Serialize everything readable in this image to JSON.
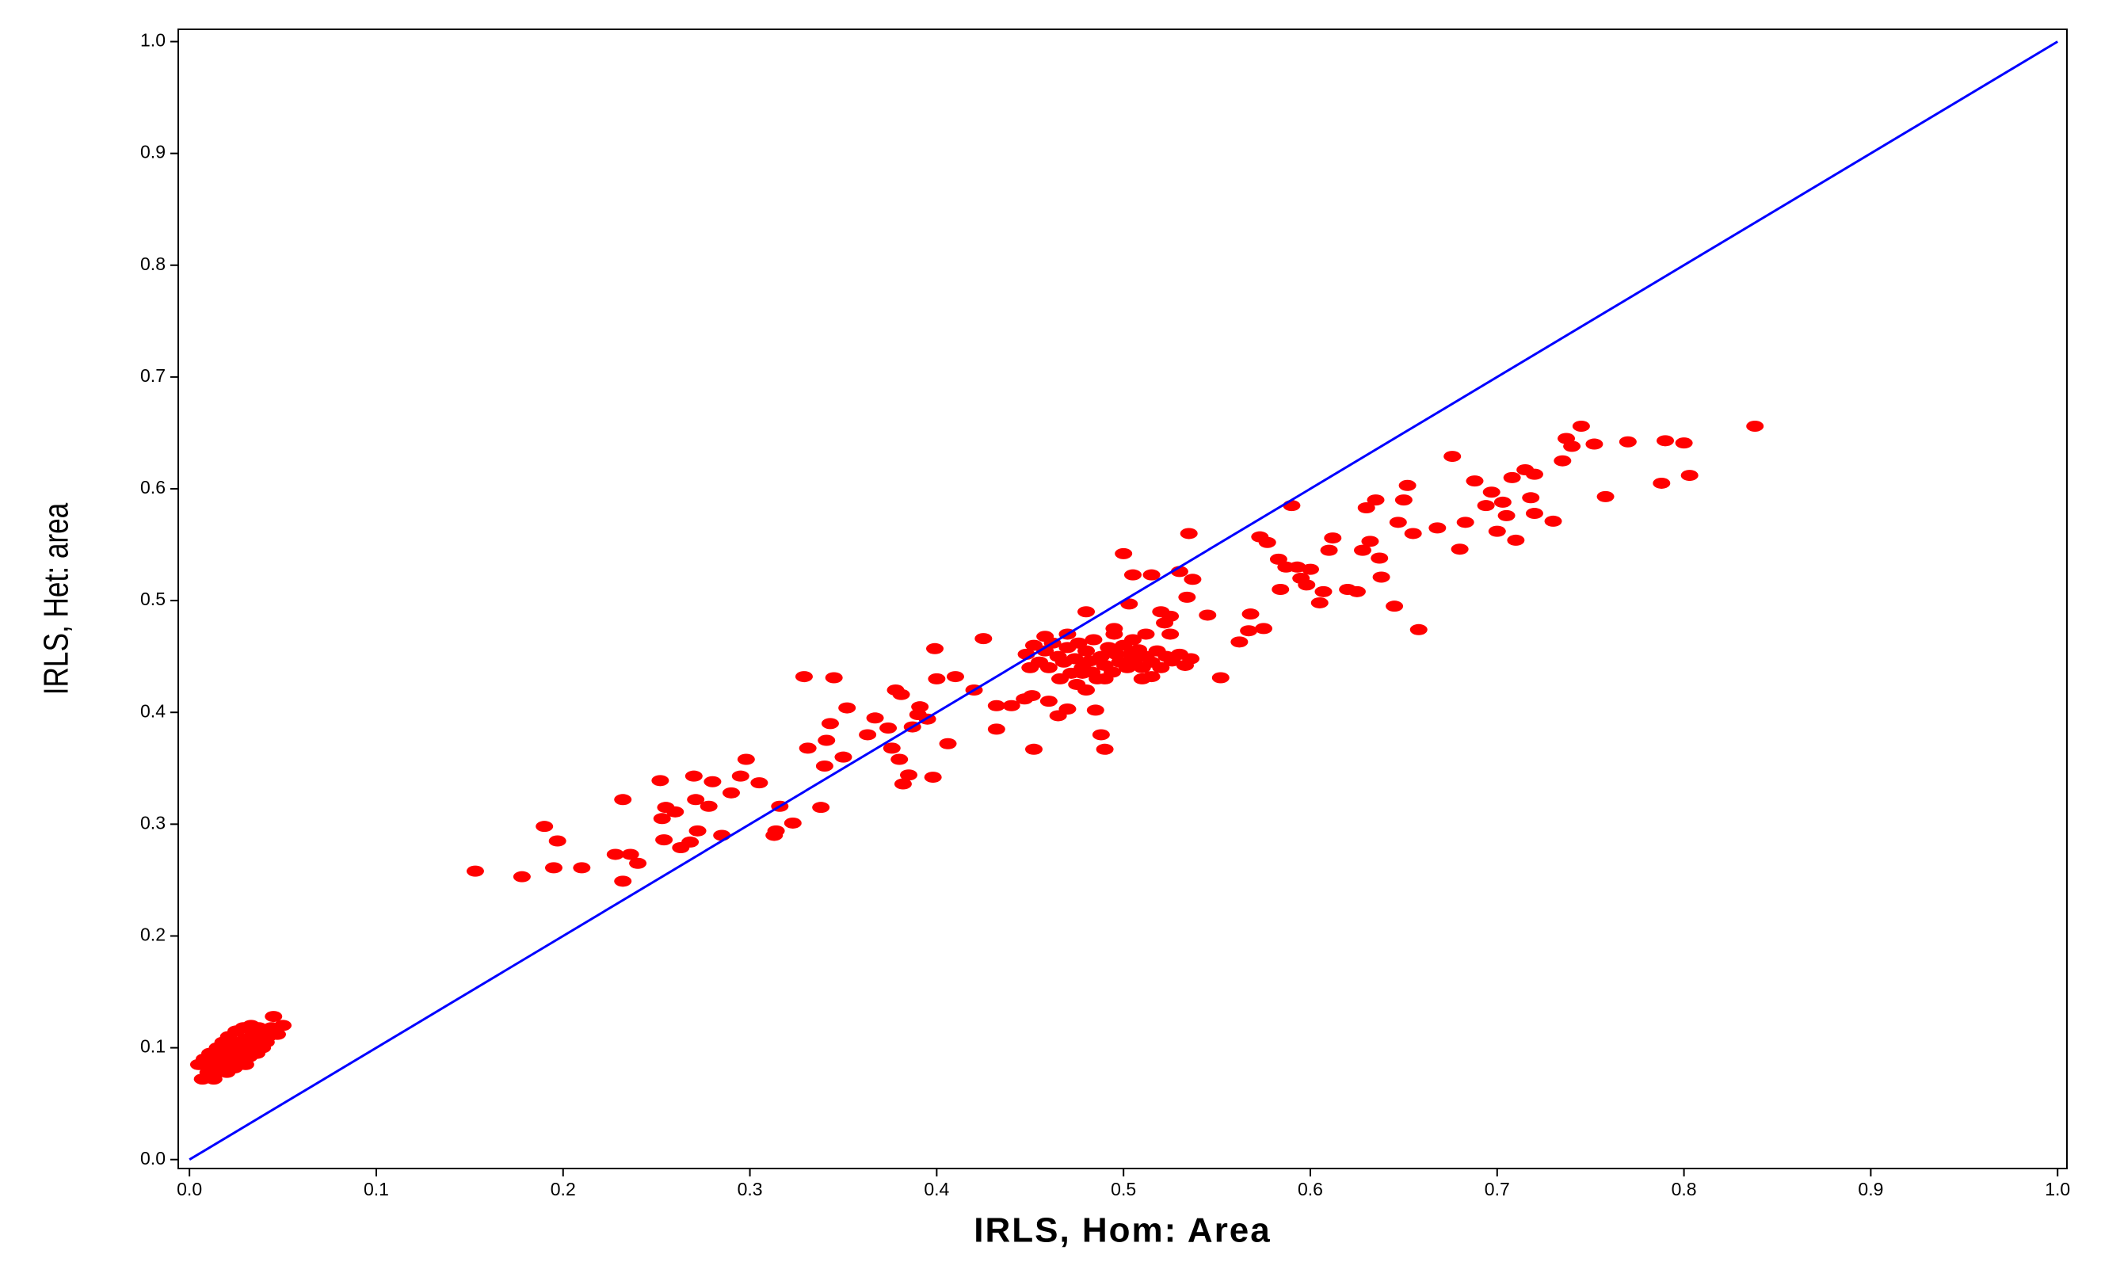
{
  "chart_data": {
    "type": "scatter",
    "x_label": "IRLS, Hom: Area",
    "y_label": "IRLS, Het: area",
    "color": "#ff0000",
    "xlim": [
      -0.006,
      1.005
    ],
    "ylim": [
      -0.008,
      1.011
    ],
    "xticks": [
      {
        "value": 0,
        "label": "0.0"
      },
      0.1,
      0.2,
      0.3,
      0.4,
      0.5,
      0.6,
      0.7,
      0.8,
      0.9,
      {
        "value": 1,
        "label": "1.0"
      }
    ],
    "yticks": [
      {
        "value": 0,
        "label": "0.0"
      },
      0.1,
      0.2,
      0.3,
      0.4,
      0.5,
      0.6,
      0.7,
      0.8,
      0.9,
      {
        "value": 1,
        "label": "1.0"
      }
    ],
    "reference_line": {
      "x": [
        0,
        1
      ],
      "y": [
        0,
        1
      ],
      "color": "#0000ff"
    },
    "x": [
      0.153,
      0.178,
      0.19,
      0.197,
      0.195,
      0.21,
      0.228,
      0.232,
      0.232,
      0.236,
      0.24,
      0.252,
      0.253,
      0.254,
      0.255,
      0.26,
      0.263,
      0.268,
      0.27,
      0.271,
      0.272,
      0.278,
      0.28,
      0.285,
      0.29,
      0.295,
      0.298,
      0.305,
      0.313,
      0.314,
      0.316,
      0.323,
      0.329,
      0.331,
      0.338,
      0.34,
      0.341,
      0.343,
      0.345,
      0.35,
      0.352,
      0.363,
      0.367,
      0.374,
      0.376,
      0.378,
      0.38,
      0.381,
      0.382,
      0.385,
      0.387,
      0.39,
      0.391,
      0.395,
      0.398,
      0.399,
      0.4,
      0.406,
      0.41,
      0.42,
      0.425,
      0.432,
      0.432,
      0.44,
      0.447,
      0.451,
      0.452,
      0.46,
      0.465,
      0.47,
      0.478,
      0.48,
      0.485,
      0.488,
      0.49,
      0.495,
      0.5,
      0.503,
      0.505,
      0.51,
      0.512,
      0.515,
      0.52,
      0.522,
      0.525,
      0.53,
      0.534,
      0.535,
      0.537,
      0.545,
      0.552,
      0.562,
      0.567,
      0.568,
      0.573,
      0.575,
      0.577,
      0.583,
      0.584,
      0.587,
      0.59,
      0.593,
      0.595,
      0.598,
      0.6,
      0.605,
      0.607,
      0.61,
      0.612,
      0.62,
      0.625,
      0.628,
      0.63,
      0.632,
      0.635,
      0.637,
      0.638,
      0.645,
      0.647,
      0.65,
      0.652,
      0.655,
      0.658,
      0.668,
      0.676,
      0.68,
      0.683,
      0.688,
      0.694,
      0.697,
      0.7,
      0.703,
      0.705,
      0.708,
      0.71,
      0.715,
      0.718,
      0.72,
      0.72,
      0.73,
      0.735,
      0.737,
      0.74,
      0.745,
      0.752,
      0.758,
      0.77,
      0.788,
      0.79,
      0.8,
      0.803,
      0.838,
      0.448,
      0.452,
      0.455,
      0.458,
      0.46,
      0.462,
      0.465,
      0.468,
      0.47,
      0.472,
      0.474,
      0.476,
      0.478,
      0.48,
      0.482,
      0.484,
      0.486,
      0.488,
      0.49,
      0.492,
      0.494,
      0.496,
      0.498,
      0.5,
      0.502,
      0.504,
      0.506,
      0.508,
      0.51,
      0.512,
      0.515,
      0.518,
      0.52,
      0.523,
      0.526,
      0.53,
      0.533,
      0.536,
      0.466,
      0.475,
      0.483,
      0.495,
      0.505,
      0.45,
      0.458,
      0.47,
      0.48,
      0.49,
      0.525,
      0.515,
      0.005,
      0.007,
      0.008,
      0.01,
      0.011,
      0.012,
      0.013,
      0.015,
      0.016,
      0.017,
      0.018,
      0.019,
      0.02,
      0.021,
      0.022,
      0.023,
      0.024,
      0.025,
      0.026,
      0.027,
      0.028,
      0.029,
      0.03,
      0.031,
      0.032,
      0.033,
      0.034,
      0.035,
      0.036,
      0.037,
      0.038,
      0.039,
      0.04,
      0.041,
      0.042,
      0.044,
      0.045,
      0.047,
      0.05,
      0.02,
      0.03
    ],
    "values": [
      0.258,
      0.253,
      0.298,
      0.285,
      0.261,
      0.261,
      0.273,
      0.322,
      0.249,
      0.273,
      0.265,
      0.339,
      0.305,
      0.286,
      0.315,
      0.311,
      0.279,
      0.284,
      0.343,
      0.322,
      0.294,
      0.316,
      0.338,
      0.29,
      0.328,
      0.343,
      0.358,
      0.337,
      0.29,
      0.294,
      0.316,
      0.301,
      0.432,
      0.368,
      0.315,
      0.352,
      0.375,
      0.39,
      0.431,
      0.36,
      0.404,
      0.38,
      0.395,
      0.386,
      0.368,
      0.42,
      0.358,
      0.416,
      0.336,
      0.344,
      0.387,
      0.398,
      0.405,
      0.394,
      0.342,
      0.457,
      0.43,
      0.372,
      0.432,
      0.42,
      0.466,
      0.406,
      0.385,
      0.406,
      0.412,
      0.415,
      0.367,
      0.41,
      0.397,
      0.403,
      0.435,
      0.49,
      0.402,
      0.38,
      0.367,
      0.475,
      0.542,
      0.497,
      0.523,
      0.43,
      0.47,
      0.523,
      0.49,
      0.48,
      0.486,
      0.526,
      0.503,
      0.56,
      0.519,
      0.487,
      0.431,
      0.463,
      0.473,
      0.488,
      0.557,
      0.475,
      0.552,
      0.537,
      0.51,
      0.53,
      0.585,
      0.53,
      0.52,
      0.514,
      0.528,
      0.498,
      0.508,
      0.545,
      0.556,
      0.51,
      0.508,
      0.545,
      0.583,
      0.553,
      0.59,
      0.538,
      0.521,
      0.495,
      0.57,
      0.59,
      0.603,
      0.56,
      0.474,
      0.565,
      0.629,
      0.546,
      0.57,
      0.607,
      0.585,
      0.597,
      0.562,
      0.588,
      0.576,
      0.61,
      0.554,
      0.617,
      0.592,
      0.613,
      0.578,
      0.571,
      0.625,
      0.645,
      0.638,
      0.656,
      0.64,
      0.593,
      0.642,
      0.605,
      0.643,
      0.641,
      0.612,
      0.656,
      0.452,
      0.46,
      0.445,
      0.455,
      0.44,
      0.462,
      0.45,
      0.445,
      0.458,
      0.435,
      0.448,
      0.462,
      0.44,
      0.455,
      0.446,
      0.465,
      0.43,
      0.45,
      0.442,
      0.458,
      0.436,
      0.452,
      0.445,
      0.46,
      0.44,
      0.452,
      0.447,
      0.456,
      0.44,
      0.45,
      0.445,
      0.455,
      0.44,
      0.45,
      0.446,
      0.452,
      0.442,
      0.448,
      0.43,
      0.425,
      0.436,
      0.47,
      0.465,
      0.44,
      0.468,
      0.47,
      0.42,
      0.43,
      0.47,
      0.432,
      0.085,
      0.072,
      0.09,
      0.078,
      0.095,
      0.083,
      0.072,
      0.1,
      0.088,
      0.08,
      0.105,
      0.093,
      0.085,
      0.11,
      0.098,
      0.09,
      0.082,
      0.115,
      0.104,
      0.095,
      0.087,
      0.118,
      0.108,
      0.1,
      0.092,
      0.12,
      0.112,
      0.103,
      0.095,
      0.118,
      0.108,
      0.1,
      0.115,
      0.105,
      0.11,
      0.118,
      0.128,
      0.112,
      0.12,
      0.078,
      0.085
    ]
  }
}
